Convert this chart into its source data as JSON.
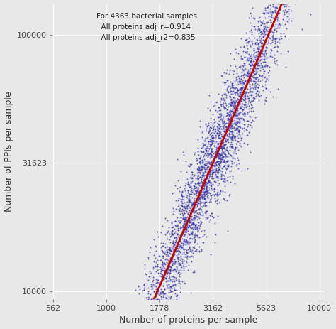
{
  "title": "",
  "xlabel": "Number of proteins per sample",
  "ylabel": "Number of PPIs per sample",
  "annotation": "For 4363 bacterial samples\n  All proteins adj_r=0.914\n  All proteins adj_r2=0.835",
  "background_color": "#E8E8E8",
  "grid_color": "#FFFFFF",
  "dot_color": "#3333AA",
  "line_color": "#CC0000",
  "x_ticks": [
    562,
    1000,
    1778,
    3162,
    5623,
    10000
  ],
  "x_tick_labels": [
    "562",
    "1000",
    "1778",
    "3162",
    "5623",
    "10000"
  ],
  "y_ticks": [
    10000,
    31623,
    100000
  ],
  "y_tick_labels": [
    "10000",
    "31623",
    "100000"
  ],
  "xlim_log": [
    2.748,
    4.02
  ],
  "ylim_log": [
    3.97,
    5.12
  ],
  "n_points": 4363,
  "seed": 42,
  "dot_size": 2.0,
  "line_slope": 1.92,
  "line_intercept": -2.22,
  "x_log_mean": 3.48,
  "x_log_std": 0.22,
  "y_noise_std": 0.1
}
